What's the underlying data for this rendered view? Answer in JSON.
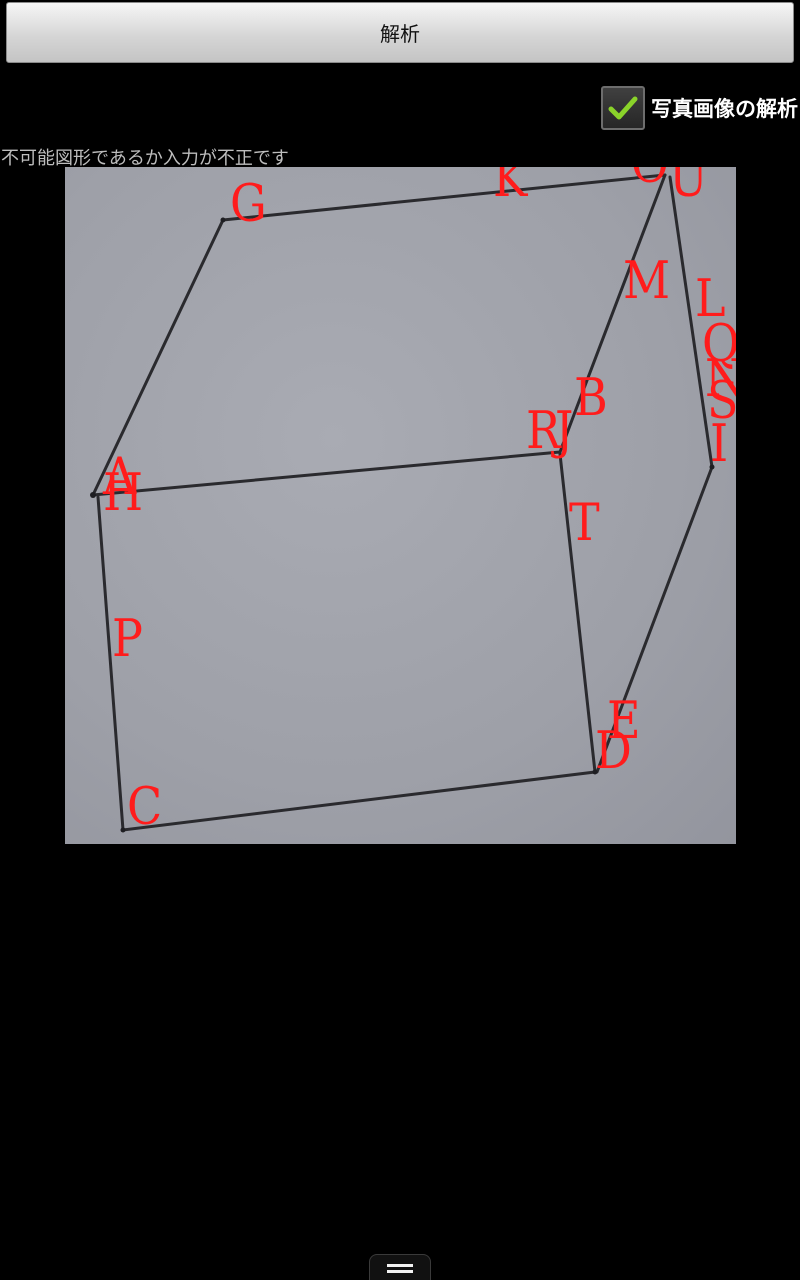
{
  "toolbar": {
    "analyze_label": "解析"
  },
  "photo_analysis": {
    "label": "写真画像の解析",
    "checked": true,
    "icon": "checkmark-icon",
    "check_color": "#8ad32a"
  },
  "status": {
    "message": "不可能図形であるか入力が不正です"
  },
  "figure": {
    "label_color": "#ff1c1c",
    "vertex_labels": [
      "K",
      "G",
      "U",
      "O",
      "M",
      "L",
      "Q",
      "N",
      "S",
      "B",
      "R",
      "J",
      "I",
      "A",
      "H",
      "T",
      "P",
      "E",
      "D",
      "C"
    ]
  },
  "navigation": {
    "menu_icon": "menu-icon"
  }
}
